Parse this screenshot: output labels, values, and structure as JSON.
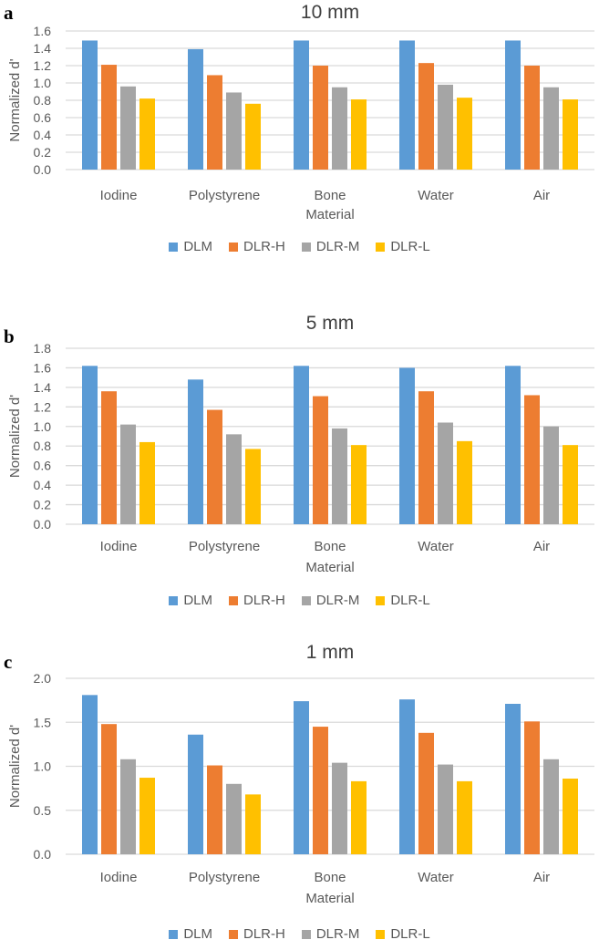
{
  "series_names": [
    "DLM",
    "DLR-H",
    "DLR-M",
    "DLR-L"
  ],
  "series_colors": [
    "#5B9BD5",
    "#ED7D31",
    "#A5A5A5",
    "#FFC000"
  ],
  "chart_data": [
    {
      "type": "bar",
      "panel_label": "a",
      "title": "10 mm",
      "xlabel": "Material",
      "ylabel": "Normalized  d'",
      "categories": [
        "Iodine",
        "Polystyrene",
        "Bone",
        "Water",
        "Air"
      ],
      "ylim": [
        0,
        1.6
      ],
      "yticks": [
        0.0,
        0.2,
        0.4,
        0.6,
        0.8,
        1.0,
        1.2,
        1.4,
        1.6
      ],
      "tick_decimals": 1,
      "grid": true,
      "legend": "bottom",
      "series": [
        {
          "name": "DLM",
          "values": [
            1.49,
            1.39,
            1.49,
            1.49,
            1.49
          ]
        },
        {
          "name": "DLR-H",
          "values": [
            1.21,
            1.09,
            1.2,
            1.23,
            1.2
          ]
        },
        {
          "name": "DLR-M",
          "values": [
            0.96,
            0.89,
            0.95,
            0.98,
            0.95
          ]
        },
        {
          "name": "DLR-L",
          "values": [
            0.82,
            0.76,
            0.81,
            0.83,
            0.81
          ]
        }
      ]
    },
    {
      "type": "bar",
      "panel_label": "b",
      "title": "5 mm",
      "xlabel": "Material",
      "ylabel": "Normalized  d'",
      "categories": [
        "Iodine",
        "Polystyrene",
        "Bone",
        "Water",
        "Air"
      ],
      "ylim": [
        0,
        1.8
      ],
      "yticks": [
        0.0,
        0.2,
        0.4,
        0.6,
        0.8,
        1.0,
        1.2,
        1.4,
        1.6,
        1.8
      ],
      "tick_decimals": 1,
      "grid": true,
      "legend": "bottom",
      "series": [
        {
          "name": "DLM",
          "values": [
            1.62,
            1.48,
            1.62,
            1.6,
            1.62
          ]
        },
        {
          "name": "DLR-H",
          "values": [
            1.36,
            1.17,
            1.31,
            1.36,
            1.32
          ]
        },
        {
          "name": "DLR-M",
          "values": [
            1.02,
            0.92,
            0.98,
            1.04,
            1.0
          ]
        },
        {
          "name": "DLR-L",
          "values": [
            0.84,
            0.77,
            0.81,
            0.85,
            0.81
          ]
        }
      ]
    },
    {
      "type": "bar",
      "panel_label": "c",
      "title": "1 mm",
      "xlabel": "Material",
      "ylabel": "Normalized  d'",
      "categories": [
        "Iodine",
        "Polystyrene",
        "Bone",
        "Water",
        "Air"
      ],
      "ylim": [
        0,
        2.0
      ],
      "yticks": [
        0.0,
        0.5,
        1.0,
        1.5,
        2.0
      ],
      "tick_decimals": 1,
      "grid": true,
      "legend": "bottom",
      "series": [
        {
          "name": "DLM",
          "values": [
            1.81,
            1.36,
            1.74,
            1.76,
            1.71
          ]
        },
        {
          "name": "DLR-H",
          "values": [
            1.48,
            1.01,
            1.45,
            1.38,
            1.51
          ]
        },
        {
          "name": "DLR-M",
          "values": [
            1.08,
            0.8,
            1.04,
            1.02,
            1.08
          ]
        },
        {
          "name": "DLR-L",
          "values": [
            0.87,
            0.68,
            0.83,
            0.83,
            0.86
          ]
        }
      ]
    }
  ]
}
